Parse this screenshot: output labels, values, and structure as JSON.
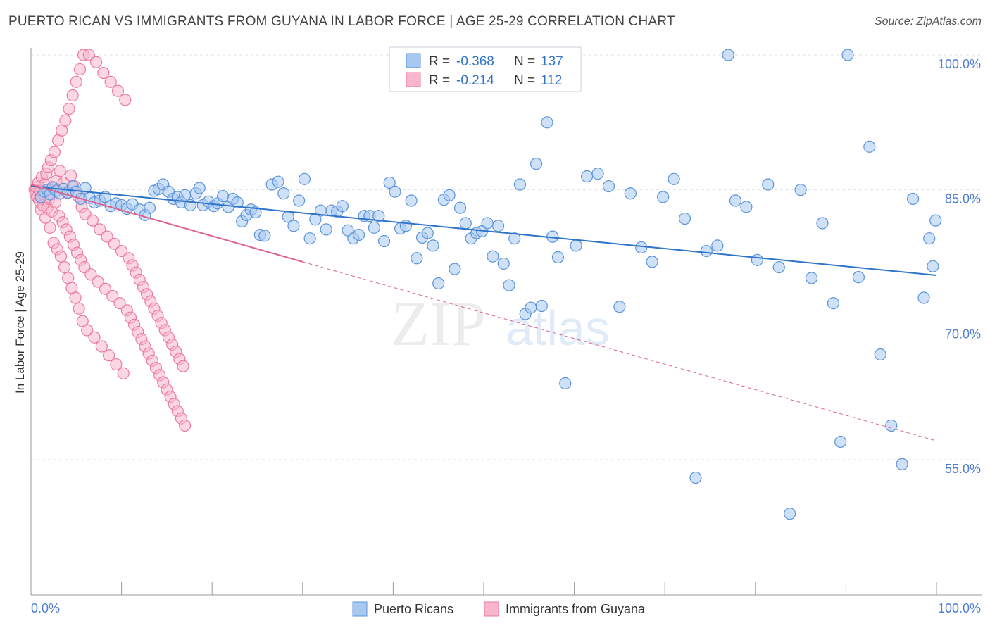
{
  "title": "PUERTO RICAN VS IMMIGRANTS FROM GUYANA IN LABOR FORCE | AGE 25-29 CORRELATION CHART",
  "source": "Source: ZipAtlas.com",
  "watermark": {
    "zip": "ZIP",
    "atlas": "atlas"
  },
  "colors": {
    "blue_fill": "#a8c8f0",
    "blue_stroke": "#5b93dc",
    "blue_line": "#2e74c9",
    "pink_fill": "#f7b6cb",
    "pink_stroke": "#ec7aa0",
    "pink_line": "#e0628f",
    "axis_text": "#4f7fd0",
    "grid": "#dde3ea"
  },
  "legend": {
    "rows": [
      {
        "r_label": "R =",
        "r_value": "-0.368",
        "n_label": "N =",
        "n_value": "137"
      },
      {
        "r_label": "R =",
        "r_value": "-0.214",
        "n_label": "N =",
        "n_value": "112"
      }
    ]
  },
  "bottom_legend": [
    "Puerto Ricans",
    "Immigrants from Guyana"
  ],
  "chart_data": {
    "type": "scatter",
    "ylabel": "In Labor Force | Age 25-29",
    "xlim": [
      0,
      100
    ],
    "ylim": [
      40,
      100
    ],
    "x_tick_labels": [
      "0.0%",
      "100.0%"
    ],
    "y_ticks": [
      55,
      70,
      85,
      100
    ],
    "y_tick_labels": [
      "55.0%",
      "70.0%",
      "85.0%",
      "100.0%"
    ],
    "grid": "horizontal dashed",
    "series": [
      {
        "name": "Puerto Ricans",
        "trend": {
          "x": [
            0,
            100
          ],
          "y": [
            85.4,
            75.5
          ],
          "style": "solid"
        },
        "points": [
          [
            1.1,
            84.2
          ],
          [
            1.5,
            84.8
          ],
          [
            1.8,
            85.0
          ],
          [
            2.1,
            84.5
          ],
          [
            2.4,
            85.3
          ],
          [
            2.8,
            84.9
          ],
          [
            3.2,
            84.6
          ],
          [
            3.6,
            85.1
          ],
          [
            4.1,
            84.7
          ],
          [
            4.6,
            85.4
          ],
          [
            5.0,
            84.8
          ],
          [
            5.5,
            84.0
          ],
          [
            6.0,
            85.2
          ],
          [
            6.5,
            84.1
          ],
          [
            7.0,
            83.6
          ],
          [
            7.6,
            83.8
          ],
          [
            8.2,
            84.2
          ],
          [
            8.8,
            83.2
          ],
          [
            9.4,
            83.5
          ],
          [
            10.0,
            83.3
          ],
          [
            10.6,
            82.9
          ],
          [
            11.2,
            83.4
          ],
          [
            12.0,
            82.8
          ],
          [
            12.6,
            82.2
          ],
          [
            13.1,
            83.0
          ],
          [
            13.6,
            84.9
          ],
          [
            14.1,
            85.1
          ],
          [
            14.6,
            85.6
          ],
          [
            15.2,
            84.8
          ],
          [
            15.7,
            84.0
          ],
          [
            16.2,
            84.2
          ],
          [
            16.6,
            83.6
          ],
          [
            17.0,
            84.4
          ],
          [
            17.6,
            83.3
          ],
          [
            18.2,
            84.6
          ],
          [
            18.6,
            85.2
          ],
          [
            19.0,
            83.3
          ],
          [
            19.6,
            83.7
          ],
          [
            20.2,
            83.2
          ],
          [
            20.6,
            83.5
          ],
          [
            21.2,
            84.3
          ],
          [
            21.8,
            83.1
          ],
          [
            22.3,
            84.0
          ],
          [
            22.8,
            83.6
          ],
          [
            23.3,
            81.5
          ],
          [
            23.8,
            82.2
          ],
          [
            24.3,
            82.8
          ],
          [
            24.8,
            82.5
          ],
          [
            25.3,
            80.0
          ],
          [
            25.8,
            79.9
          ],
          [
            26.6,
            85.6
          ],
          [
            27.3,
            85.9
          ],
          [
            27.9,
            84.6
          ],
          [
            28.4,
            82.0
          ],
          [
            29.0,
            81.0
          ],
          [
            29.6,
            83.8
          ],
          [
            30.2,
            86.2
          ],
          [
            30.8,
            79.6
          ],
          [
            31.4,
            81.7
          ],
          [
            32.0,
            82.7
          ],
          [
            32.6,
            80.6
          ],
          [
            33.2,
            82.7
          ],
          [
            33.8,
            82.6
          ],
          [
            34.4,
            83.2
          ],
          [
            35.0,
            80.5
          ],
          [
            35.6,
            79.6
          ],
          [
            36.2,
            80.0
          ],
          [
            36.8,
            82.1
          ],
          [
            37.4,
            82.1
          ],
          [
            37.9,
            80.8
          ],
          [
            38.4,
            82.1
          ],
          [
            39.0,
            79.3
          ],
          [
            39.6,
            85.8
          ],
          [
            40.2,
            84.8
          ],
          [
            40.8,
            80.7
          ],
          [
            41.4,
            81.0
          ],
          [
            42.0,
            83.8
          ],
          [
            42.6,
            77.4
          ],
          [
            43.2,
            79.7
          ],
          [
            43.8,
            80.2
          ],
          [
            44.4,
            78.8
          ],
          [
            45.0,
            74.6
          ],
          [
            45.6,
            83.9
          ],
          [
            46.2,
            84.4
          ],
          [
            46.8,
            76.2
          ],
          [
            47.4,
            83.0
          ],
          [
            48.0,
            81.3
          ],
          [
            48.6,
            79.6
          ],
          [
            49.2,
            80.2
          ],
          [
            49.8,
            80.4
          ],
          [
            50.4,
            81.3
          ],
          [
            51.0,
            77.6
          ],
          [
            51.6,
            81.0
          ],
          [
            52.2,
            76.8
          ],
          [
            52.8,
            74.4
          ],
          [
            53.4,
            79.6
          ],
          [
            54.0,
            85.6
          ],
          [
            54.6,
            71.2
          ],
          [
            55.2,
            71.9
          ],
          [
            55.8,
            87.9
          ],
          [
            56.4,
            72.1
          ],
          [
            57.0,
            92.5
          ],
          [
            57.6,
            79.8
          ],
          [
            58.2,
            77.5
          ],
          [
            59.0,
            63.5
          ],
          [
            60.2,
            78.8
          ],
          [
            61.4,
            86.5
          ],
          [
            62.6,
            86.8
          ],
          [
            63.8,
            85.4
          ],
          [
            65.0,
            72.0
          ],
          [
            66.2,
            84.6
          ],
          [
            67.4,
            78.6
          ],
          [
            68.6,
            77.0
          ],
          [
            69.8,
            84.2
          ],
          [
            71.0,
            86.2
          ],
          [
            72.2,
            81.8
          ],
          [
            73.4,
            53.0
          ],
          [
            74.6,
            78.2
          ],
          [
            75.8,
            78.8
          ],
          [
            77.0,
            100.0
          ],
          [
            77.8,
            83.8
          ],
          [
            79.0,
            83.1
          ],
          [
            80.2,
            77.2
          ],
          [
            81.4,
            85.6
          ],
          [
            82.6,
            76.4
          ],
          [
            83.8,
            49.0
          ],
          [
            85.0,
            85.0
          ],
          [
            86.2,
            75.2
          ],
          [
            87.4,
            81.3
          ],
          [
            88.6,
            72.4
          ],
          [
            89.4,
            57.0
          ],
          [
            90.2,
            100.0
          ],
          [
            91.4,
            75.3
          ],
          [
            92.6,
            89.8
          ],
          [
            93.8,
            66.7
          ],
          [
            95.0,
            58.8
          ],
          [
            96.2,
            54.5
          ],
          [
            97.4,
            84.0
          ],
          [
            98.6,
            73.0
          ],
          [
            99.2,
            79.6
          ],
          [
            99.6,
            76.5
          ],
          [
            99.9,
            81.6
          ]
        ]
      },
      {
        "name": "Immigrants from Guyana",
        "trend": {
          "x": [
            0,
            30
          ],
          "y": [
            85.6,
            77.0
          ],
          "x_dashed_to": 100,
          "y_dashed_to": 57.1,
          "style": "solid-then-dashed"
        },
        "points": [
          [
            0.4,
            85.0
          ],
          [
            0.5,
            84.6
          ],
          [
            0.6,
            85.3
          ],
          [
            0.7,
            84.2
          ],
          [
            0.8,
            85.8
          ],
          [
            0.9,
            83.8
          ],
          [
            1.0,
            84.9
          ],
          [
            1.1,
            82.8
          ],
          [
            1.2,
            86.4
          ],
          [
            1.3,
            83.3
          ],
          [
            1.4,
            84.5
          ],
          [
            1.5,
            85.6
          ],
          [
            1.6,
            81.9
          ],
          [
            1.7,
            86.8
          ],
          [
            1.8,
            83.0
          ],
          [
            1.9,
            87.5
          ],
          [
            2.0,
            84.0
          ],
          [
            2.1,
            80.8
          ],
          [
            2.2,
            88.3
          ],
          [
            2.3,
            82.6
          ],
          [
            2.4,
            85.2
          ],
          [
            2.5,
            79.1
          ],
          [
            2.6,
            89.2
          ],
          [
            2.7,
            83.6
          ],
          [
            2.8,
            86.0
          ],
          [
            2.9,
            78.4
          ],
          [
            3.0,
            90.5
          ],
          [
            3.1,
            82.1
          ],
          [
            3.2,
            87.1
          ],
          [
            3.3,
            77.6
          ],
          [
            3.4,
            91.6
          ],
          [
            3.5,
            81.4
          ],
          [
            3.6,
            85.8
          ],
          [
            3.7,
            76.4
          ],
          [
            3.8,
            92.7
          ],
          [
            3.9,
            80.6
          ],
          [
            4.0,
            84.7
          ],
          [
            4.1,
            75.2
          ],
          [
            4.2,
            94.0
          ],
          [
            4.3,
            79.8
          ],
          [
            4.4,
            86.6
          ],
          [
            4.5,
            74.1
          ],
          [
            4.6,
            95.5
          ],
          [
            4.7,
            78.9
          ],
          [
            4.8,
            85.4
          ],
          [
            4.9,
            73.0
          ],
          [
            5.0,
            97.0
          ],
          [
            5.1,
            78.0
          ],
          [
            5.2,
            84.3
          ],
          [
            5.3,
            71.8
          ],
          [
            5.4,
            98.4
          ],
          [
            5.5,
            77.2
          ],
          [
            5.6,
            83.1
          ],
          [
            5.7,
            70.4
          ],
          [
            5.8,
            100.0
          ],
          [
            5.9,
            76.4
          ],
          [
            6.0,
            82.3
          ],
          [
            6.2,
            69.4
          ],
          [
            6.4,
            100.0
          ],
          [
            6.6,
            75.6
          ],
          [
            6.8,
            81.6
          ],
          [
            7.0,
            68.6
          ],
          [
            7.2,
            99.2
          ],
          [
            7.4,
            74.8
          ],
          [
            7.6,
            80.6
          ],
          [
            7.8,
            67.6
          ],
          [
            8.0,
            98.0
          ],
          [
            8.2,
            74.0
          ],
          [
            8.4,
            79.8
          ],
          [
            8.6,
            66.6
          ],
          [
            8.8,
            97.0
          ],
          [
            9.0,
            73.2
          ],
          [
            9.2,
            79.0
          ],
          [
            9.4,
            65.6
          ],
          [
            9.6,
            96.0
          ],
          [
            9.8,
            72.4
          ],
          [
            10.0,
            78.2
          ],
          [
            10.2,
            64.6
          ],
          [
            10.4,
            95.0
          ],
          [
            10.6,
            71.6
          ],
          [
            10.8,
            77.4
          ],
          [
            11.0,
            70.8
          ],
          [
            11.2,
            76.6
          ],
          [
            11.4,
            70.0
          ],
          [
            11.6,
            75.8
          ],
          [
            11.8,
            69.2
          ],
          [
            12.0,
            75.0
          ],
          [
            12.2,
            68.4
          ],
          [
            12.4,
            74.2
          ],
          [
            12.6,
            67.6
          ],
          [
            12.8,
            73.4
          ],
          [
            13.0,
            66.8
          ],
          [
            13.2,
            72.6
          ],
          [
            13.4,
            66.0
          ],
          [
            13.6,
            71.8
          ],
          [
            13.8,
            65.2
          ],
          [
            14.0,
            71.0
          ],
          [
            14.2,
            64.4
          ],
          [
            14.4,
            70.2
          ],
          [
            14.6,
            63.6
          ],
          [
            14.8,
            69.4
          ],
          [
            15.0,
            62.8
          ],
          [
            15.2,
            68.6
          ],
          [
            15.4,
            62.0
          ],
          [
            15.6,
            67.8
          ],
          [
            15.8,
            61.2
          ],
          [
            16.0,
            67.0
          ],
          [
            16.2,
            60.4
          ],
          [
            16.4,
            66.2
          ],
          [
            16.6,
            59.6
          ],
          [
            16.8,
            65.4
          ],
          [
            17.0,
            58.8
          ]
        ]
      }
    ]
  }
}
